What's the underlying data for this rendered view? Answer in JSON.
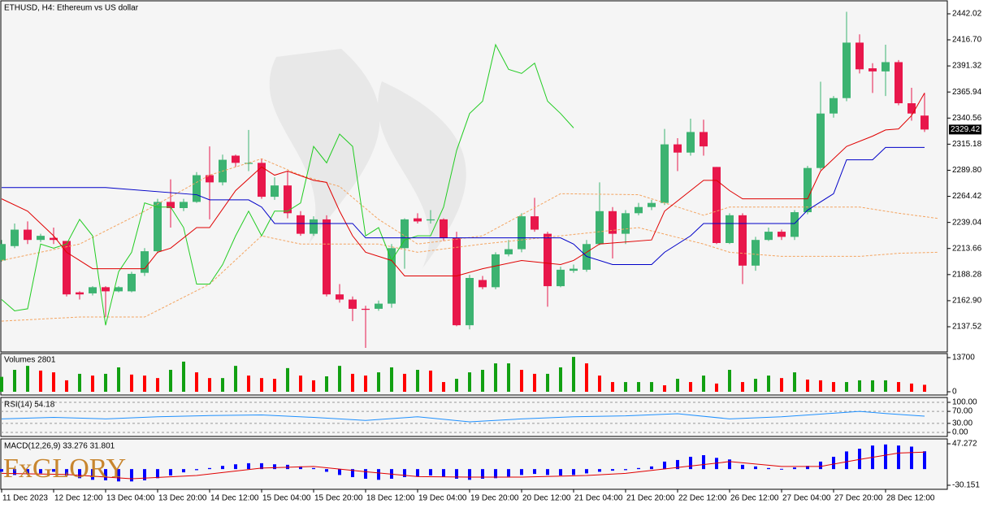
{
  "logo": "FxGLORY",
  "chart_data": [
    {
      "type": "candlestick",
      "title": "ETHUSD, H4:  Ethereum vs US dollar",
      "categories": [
        "11 Dec 2023",
        null,
        null,
        null,
        "12 Dec 12:00",
        null,
        null,
        null,
        "13 Dec 04:00",
        null,
        null,
        null,
        "13 Dec 20:00",
        null,
        null,
        null,
        "14 Dec 12:00",
        null,
        null,
        null,
        "15 Dec 04:00",
        null,
        null,
        null,
        "15 Dec 20:00",
        null,
        null,
        null,
        "18 Dec 12:00",
        null,
        null,
        null,
        "19 Dec 04:00",
        null,
        null,
        null,
        "19 Dec 20:00",
        null,
        null,
        null,
        "20 Dec 12:00",
        null,
        null,
        null,
        "21 Dec 04:00",
        null,
        null,
        null,
        "21 Dec 20:00",
        null,
        null,
        null,
        "22 Dec 12:00",
        null,
        null,
        null,
        "26 Dec 12:00",
        null,
        null,
        null,
        "27 Dec 04:00",
        null,
        null,
        null,
        "27 Dec 20:00",
        null,
        null,
        null,
        "28 Dec 12:00",
        null,
        null,
        null
      ],
      "open": [
        2202,
        2216,
        2232,
        2222,
        2224,
        2221,
        2171,
        2170,
        2176,
        2172,
        2172,
        2190,
        2211,
        2259,
        2253,
        2259,
        2285,
        2278,
        2304,
        2296,
        2297,
        2264,
        2275,
        2246,
        2228,
        2242,
        2169,
        2164,
        2155,
        2155,
        2160,
        2214,
        2243,
        2241,
        2242,
        2224,
        2139,
        2183,
        2176,
        2208,
        2213,
        2245,
        2228,
        2177,
        2192,
        2193,
        2218,
        2250,
        2228,
        2248,
        2254,
        2258,
        2315,
        2307,
        2327,
        2293,
        2219,
        2246,
        2197,
        2222,
        2230,
        2225,
        2249,
        2292,
        2345,
        2360,
        2414,
        2389,
        2386,
        2395,
        2355,
        2343
      ],
      "high": [
        2222,
        2238,
        2240,
        2228,
        2234,
        2221,
        2172,
        2177,
        2177,
        2177,
        2191,
        2214,
        2262,
        2281,
        2262,
        2288,
        2313,
        2305,
        2305,
        2329,
        2301,
        2283,
        2289,
        2250,
        2245,
        2246,
        2179,
        2167,
        2158,
        2163,
        2218,
        2243,
        2248,
        2251,
        2243,
        2230,
        2188,
        2187,
        2210,
        2222,
        2248,
        2263,
        2230,
        2196,
        2198,
        2222,
        2278,
        2254,
        2251,
        2258,
        2261,
        2330,
        2321,
        2340,
        2339,
        2293,
        2248,
        2248,
        2225,
        2234,
        2232,
        2251,
        2294,
        2376,
        2362,
        2444,
        2422,
        2394,
        2412,
        2397,
        2370,
        2365
      ],
      "low": [
        2201,
        2214,
        2218,
        2220,
        2218,
        2167,
        2164,
        2168,
        2147,
        2171,
        2171,
        2187,
        2209,
        2234,
        2250,
        2258,
        2242,
        2275,
        2293,
        2289,
        2262,
        2261,
        2243,
        2226,
        2226,
        2167,
        2161,
        2143,
        2117,
        2153,
        2156,
        2194,
        2238,
        2238,
        2221,
        2138,
        2135,
        2174,
        2174,
        2206,
        2210,
        2230,
        2157,
        2176,
        2190,
        2191,
        2217,
        2204,
        2218,
        2246,
        2251,
        2256,
        2289,
        2304,
        2304,
        2218,
        2218,
        2179,
        2192,
        2221,
        2222,
        2222,
        2247,
        2290,
        2341,
        2357,
        2384,
        2365,
        2362,
        2353,
        2338,
        2327
      ],
      "close": [
        2218,
        2232,
        2222,
        2226,
        2222,
        2169,
        2169,
        2176,
        2172,
        2176,
        2189,
        2211,
        2259,
        2253,
        2259,
        2285,
        2278,
        2300,
        2297,
        2297,
        2264,
        2275,
        2248,
        2228,
        2242,
        2169,
        2164,
        2155,
        2154,
        2160,
        2214,
        2242,
        2240,
        2242,
        2224,
        2139,
        2185,
        2176,
        2208,
        2213,
        2245,
        2232,
        2177,
        2193,
        2194,
        2218,
        2250,
        2228,
        2248,
        2254,
        2258,
        2315,
        2307,
        2327,
        2313,
        2219,
        2246,
        2197,
        2222,
        2230,
        2225,
        2249,
        2292,
        2345,
        2360,
        2414,
        2388,
        2386,
        2395,
        2355,
        2345,
        2329.42
      ],
      "up_color": "#3cb371",
      "down_color": "#e8174b",
      "ylim": [
        2113.8,
        2452.3
      ],
      "yticks": [
        {
          "value": 2442.02,
          "label": "2442.02"
        },
        {
          "value": 2416.7,
          "label": "2416.70"
        },
        {
          "value": 2391.32,
          "label": "2391.32"
        },
        {
          "value": 2365.94,
          "label": "2365.94"
        },
        {
          "value": 2340.56,
          "label": "2340.56"
        },
        {
          "value": 2315.18,
          "label": "2315.18"
        },
        {
          "value": 2289.8,
          "label": "2289.80"
        },
        {
          "value": 2264.42,
          "label": "2264.42"
        },
        {
          "value": 2239.04,
          "label": "2239.04"
        },
        {
          "value": 2213.66,
          "label": "2213.66"
        },
        {
          "value": 2188.28,
          "label": "2188.28"
        },
        {
          "value": 2162.9,
          "label": "2162.90"
        },
        {
          "value": 2137.52,
          "label": "2137.52"
        }
      ],
      "lines": [
        {
          "color": "#f4a460",
          "dash": true,
          "x": [
            0,
            6,
            11,
            16,
            20,
            23,
            26,
            29,
            32,
            37,
            43,
            49,
            54,
            56,
            60,
            66,
            69,
            72
          ],
          "values": [
            2202,
            2218,
            2250,
            2285,
            2301,
            2285,
            2274,
            2242,
            2218,
            2226,
            2267,
            2266,
            2246,
            2254,
            2254,
            2254,
            2248,
            2243
          ]
        },
        {
          "color": "#f4a460",
          "dash": true,
          "x": [
            0,
            6,
            11,
            16,
            20,
            23,
            26,
            29,
            32,
            37,
            43,
            49,
            54,
            56,
            60,
            66,
            69,
            72
          ],
          "values": [
            2143,
            2147,
            2147,
            2179,
            2226,
            2218,
            2218,
            2218,
            2210,
            2218,
            2226,
            2234,
            2218,
            2210,
            2206,
            2206,
            2209,
            2210
          ]
        },
        {
          "color": "#22cc22",
          "x": [
            0,
            1,
            2,
            3,
            4,
            5,
            6,
            7,
            8,
            9,
            10,
            11,
            12,
            13,
            14,
            15,
            16,
            17,
            18,
            19,
            20,
            21,
            22,
            23,
            24,
            25,
            26,
            27,
            28,
            29,
            30,
            31,
            32,
            33,
            34,
            35,
            36,
            37,
            38,
            39,
            40,
            41,
            42,
            43,
            44
          ],
          "values": [
            2164,
            2153,
            2155,
            2218,
            2214,
            2218,
            2242,
            2226,
            2139,
            2191,
            2210,
            2258,
            2254,
            2254,
            2234,
            2179,
            2179,
            2198,
            2226,
            2250,
            2226,
            2250,
            2250,
            2258,
            2313,
            2297,
            2325,
            2313,
            2226,
            2234,
            2202,
            2222,
            2226,
            2226,
            2254,
            2309,
            2345,
            2357,
            2412,
            2388,
            2384,
            2394,
            2357,
            2345,
            2331
          ]
        },
        {
          "color": "#e00000",
          "x": [
            0,
            2,
            4,
            5,
            6,
            7,
            11,
            12,
            13,
            15,
            16,
            18,
            20,
            21,
            22,
            24,
            25,
            26,
            27,
            28,
            30,
            31,
            35,
            37,
            40,
            43,
            44,
            45,
            46,
            50,
            51,
            53,
            54,
            55,
            56,
            57,
            62,
            63,
            65,
            67,
            68,
            69,
            70,
            71
          ],
          "values": [
            2262,
            2250,
            2226,
            2210,
            2202,
            2194,
            2194,
            2210,
            2214,
            2234,
            2234,
            2270,
            2293,
            2285,
            2289,
            2280,
            2278,
            2250,
            2226,
            2210,
            2202,
            2187,
            2187,
            2194,
            2202,
            2198,
            2202,
            2210,
            2218,
            2222,
            2250,
            2270,
            2280,
            2280,
            2270,
            2262,
            2262,
            2289,
            2313,
            2323,
            2329,
            2330,
            2343,
            2365
          ]
        },
        {
          "color": "#0000c8",
          "x": [
            0,
            8,
            15,
            16,
            19,
            20,
            21,
            27,
            28,
            43,
            44,
            45,
            47,
            50,
            51,
            53,
            54,
            61,
            62,
            64,
            65,
            67,
            68,
            71
          ],
          "values": [
            2273,
            2273,
            2266,
            2261,
            2261,
            2254,
            2238,
            2238,
            2224,
            2224,
            2218,
            2206,
            2198,
            2198,
            2210,
            2226,
            2238,
            2238,
            2251,
            2267,
            2300,
            2300,
            2312,
            2312
          ]
        }
      ]
    },
    {
      "type": "bar",
      "title": "Volumes 2801",
      "up_color": "#12a012",
      "down_color": "#ff0000",
      "values": [
        6000,
        8800,
        10400,
        8500,
        7800,
        4600,
        7200,
        6500,
        7200,
        9800,
        6900,
        6500,
        5500,
        8800,
        12100,
        7800,
        5500,
        5500,
        10400,
        6500,
        5500,
        5200,
        9500,
        6500,
        4600,
        6200,
        10400,
        7200,
        6500,
        7800,
        9800,
        7200,
        8800,
        8500,
        3900,
        5200,
        7800,
        8800,
        11400,
        11400,
        8800,
        7200,
        7200,
        9800,
        14000,
        11400,
        6500,
        3900,
        3900,
        3900,
        3900,
        2600,
        5200,
        3900,
        6500,
        3300,
        8800,
        3900,
        5200,
        6500,
        5500,
        7800,
        4900,
        4600,
        3900,
        3900,
        4600,
        4600,
        4600,
        3900,
        3300,
        2801
      ],
      "ylim": [
        0,
        13700
      ],
      "yticks": [
        13700,
        0
      ]
    },
    {
      "type": "line",
      "title": "RSI(14) 54.18",
      "ylim": [
        0,
        100
      ],
      "yticks": [
        {
          "value": 100,
          "label": "100.00"
        },
        {
          "value": 70,
          "label": "70.00"
        },
        {
          "value": 30,
          "label": "30.00"
        },
        {
          "value": 0,
          "label": "0.00"
        }
      ],
      "lines": [
        {
          "color": "#1e90ff",
          "x": [
            0,
            4,
            8,
            12,
            16,
            20,
            24,
            28,
            32,
            36,
            40,
            44,
            48,
            52,
            56,
            60,
            64,
            66,
            68,
            71
          ],
          "values": [
            45,
            50,
            45,
            52,
            56,
            58,
            50,
            40,
            52,
            35,
            45,
            52,
            55,
            62,
            45,
            52,
            64,
            70,
            63,
            54.18
          ]
        }
      ]
    },
    {
      "type": "bar",
      "title": "MACD(12,26,9) 33.276 31.801",
      "color": "#0000ff",
      "values": [
        -5,
        -11,
        -9,
        -8,
        -5,
        -12,
        -17,
        -20,
        -21,
        -23,
        -23,
        -21,
        -17,
        -12,
        -6,
        -2,
        2,
        6,
        9,
        11,
        11,
        9,
        8,
        5,
        2,
        -5,
        -11,
        -15,
        -18,
        -20,
        -18,
        -15,
        -14,
        -12,
        -14,
        -18,
        -20,
        -18,
        -17,
        -14,
        -11,
        -9,
        -11,
        -12,
        -11,
        -8,
        -5,
        -3,
        -2,
        2,
        5,
        14,
        17,
        23,
        26,
        21,
        18,
        8,
        5,
        2,
        0.5,
        3,
        6,
        14,
        23,
        33,
        38,
        44,
        46,
        44,
        42,
        33.276
      ],
      "ylim": [
        -30.151,
        47.272
      ],
      "yticks": [
        47.272,
        -30.151
      ],
      "lines": [
        {
          "color": "#e00000",
          "x": [
            0,
            5,
            10,
            15,
            20,
            24,
            28,
            32,
            36,
            40,
            45,
            48,
            52,
            56,
            60,
            63,
            66,
            69,
            71
          ],
          "values": [
            -8,
            -10,
            -18,
            -12,
            2,
            5,
            -5,
            -14,
            -15,
            -15,
            -12,
            -8,
            3,
            14,
            5,
            5,
            18,
            30,
            31.801
          ]
        }
      ]
    }
  ]
}
